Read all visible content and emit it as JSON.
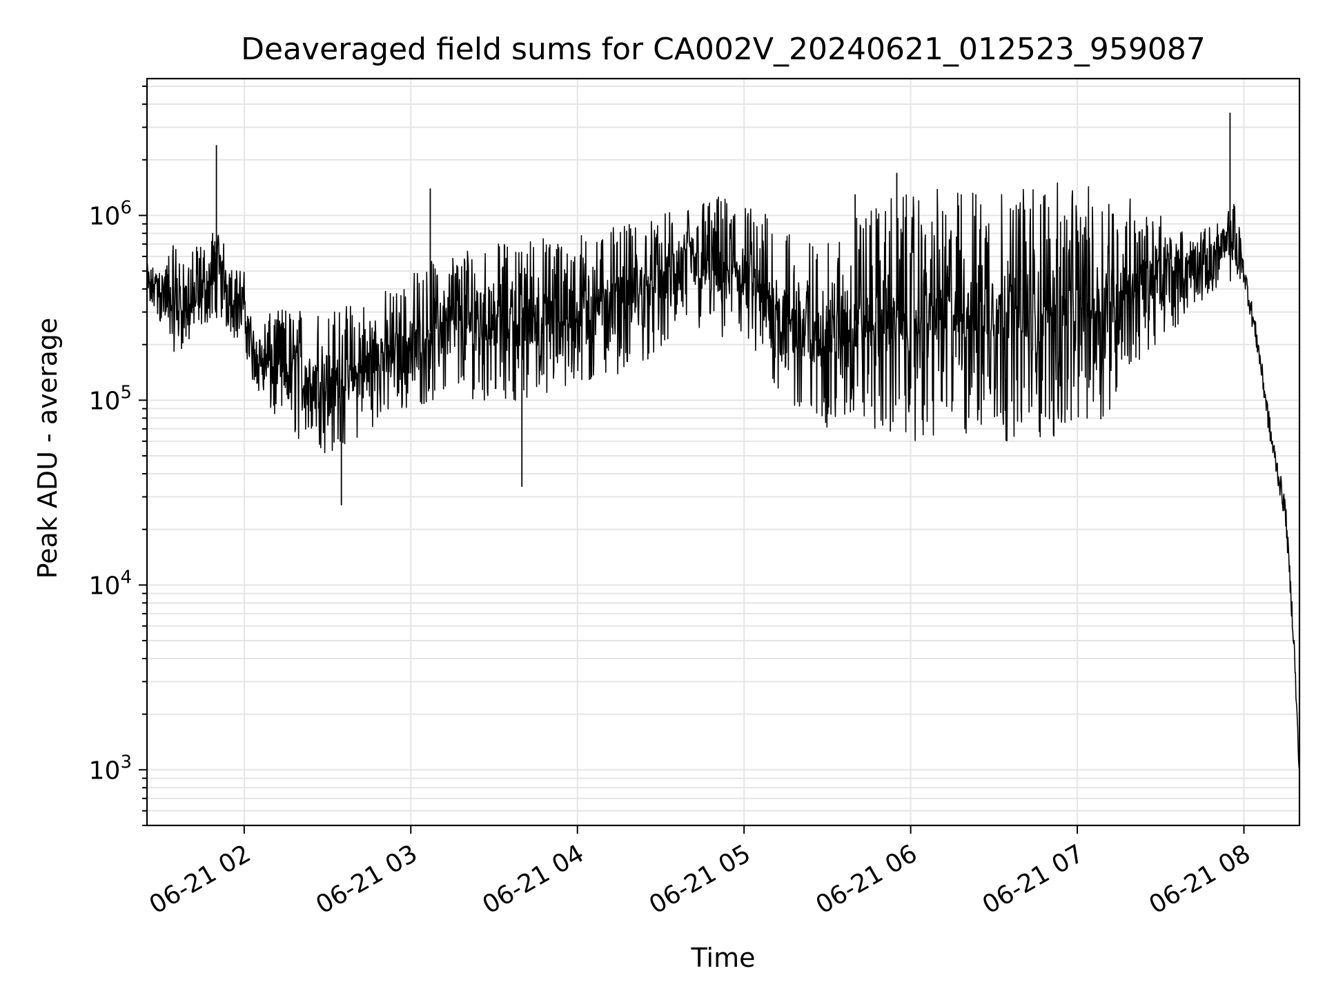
{
  "chart_data": {
    "type": "line",
    "title": "Deaveraged field sums for CA002V_20240621_012523_959087",
    "xlabel": "Time",
    "ylabel": "Peak ADU - average",
    "y_scale": "log",
    "ylim": [
      500,
      5500000
    ],
    "xlim": [
      "2024-06-21 01:25",
      "2024-06-21 08:20"
    ],
    "grid": true,
    "legend": "none",
    "line_color": "#000000",
    "grid_color": "#e5e5e5",
    "x_ticks": [
      {
        "x": "2024-06-21 02:00",
        "label": "06-21 02"
      },
      {
        "x": "2024-06-21 03:00",
        "label": "06-21 03"
      },
      {
        "x": "2024-06-21 04:00",
        "label": "06-21 04"
      },
      {
        "x": "2024-06-21 05:00",
        "label": "06-21 05"
      },
      {
        "x": "2024-06-21 06:00",
        "label": "06-21 06"
      },
      {
        "x": "2024-06-21 07:00",
        "label": "06-21 07"
      },
      {
        "x": "2024-06-21 08:00",
        "label": "06-21 08"
      }
    ],
    "y_ticks": [
      {
        "value": 1000,
        "base": "10",
        "exp": "3"
      },
      {
        "value": 10000,
        "base": "10",
        "exp": "4"
      },
      {
        "value": 100000,
        "base": "10",
        "exp": "5"
      },
      {
        "value": 1000000,
        "base": "10",
        "exp": "6"
      }
    ],
    "series": [
      {
        "x": [
          "2024-06-21 01:25",
          "2024-06-21 01:30",
          "2024-06-21 01:35",
          "2024-06-21 01:40",
          "2024-06-21 01:45",
          "2024-06-21 01:50",
          "2024-06-21 01:53",
          "2024-06-21 01:55",
          "2024-06-21 02:00",
          "2024-06-21 02:03",
          "2024-06-21 02:10",
          "2024-06-21 02:20",
          "2024-06-21 02:30",
          "2024-06-21 02:40",
          "2024-06-21 02:50",
          "2024-06-21 03:00",
          "2024-06-21 03:10",
          "2024-06-21 03:20",
          "2024-06-21 03:30",
          "2024-06-21 03:40",
          "2024-06-21 03:50",
          "2024-06-21 04:00",
          "2024-06-21 04:10",
          "2024-06-21 04:20",
          "2024-06-21 04:30",
          "2024-06-21 04:40",
          "2024-06-21 04:50",
          "2024-06-21 05:00",
          "2024-06-21 05:10",
          "2024-06-21 05:20",
          "2024-06-21 05:30",
          "2024-06-21 05:40",
          "2024-06-21 05:50",
          "2024-06-21 06:00",
          "2024-06-21 06:10",
          "2024-06-21 06:20",
          "2024-06-21 06:30",
          "2024-06-21 06:40",
          "2024-06-21 06:50",
          "2024-06-21 07:00",
          "2024-06-21 07:10",
          "2024-06-21 07:20",
          "2024-06-21 07:30",
          "2024-06-21 07:40",
          "2024-06-21 07:50",
          "2024-06-21 07:57",
          "2024-06-21 08:00",
          "2024-06-21 08:05",
          "2024-06-21 08:10",
          "2024-06-21 08:15",
          "2024-06-21 08:18",
          "2024-06-21 08:20"
        ],
        "low": [
          350000,
          250000,
          180000,
          200000,
          250000,
          280000,
          250000,
          220000,
          200000,
          120000,
          80000,
          60000,
          50000,
          60000,
          80000,
          90000,
          100000,
          100000,
          100000,
          100000,
          100000,
          110000,
          130000,
          150000,
          180000,
          250000,
          200000,
          180000,
          120000,
          80000,
          70000,
          70000,
          65000,
          60000,
          60000,
          60000,
          60000,
          60000,
          60000,
          65000,
          80000,
          150000,
          200000,
          300000,
          400000,
          450000,
          400000,
          150000,
          50000,
          20000,
          3000,
          800
        ],
        "high": [
          500000,
          600000,
          700000,
          650000,
          700000,
          900000,
          800000,
          600000,
          500000,
          250000,
          300000,
          350000,
          300000,
          350000,
          400000,
          500000,
          600000,
          700000,
          700000,
          750000,
          800000,
          800000,
          850000,
          900000,
          1000000,
          1200000,
          1300000,
          1200000,
          1000000,
          800000,
          700000,
          1000000,
          1300000,
          1300000,
          1400000,
          1400000,
          1500000,
          1500000,
          1500000,
          1500000,
          1400000,
          1300000,
          1000000,
          800000,
          900000,
          1300000,
          650000,
          300000,
          80000,
          30000,
          8000,
          2000
        ],
        "mid": [
          420000,
          380000,
          330000,
          320000,
          380000,
          450000,
          420000,
          380000,
          320000,
          180000,
          160000,
          140000,
          120000,
          140000,
          170000,
          200000,
          250000,
          270000,
          280000,
          280000,
          300000,
          310000,
          340000,
          380000,
          430000,
          550000,
          520000,
          470000,
          340000,
          250000,
          220000,
          270000,
          280000,
          280000,
          300000,
          300000,
          300000,
          300000,
          300000,
          320000,
          340000,
          450000,
          450000,
          500000,
          600000,
          750000,
          500000,
          200000,
          60000,
          25000,
          5000,
          900
        ]
      }
    ],
    "spikes": [
      {
        "x": "2024-06-21 01:50",
        "value": 2400000
      },
      {
        "x": "2024-06-21 02:35",
        "value": 27000
      },
      {
        "x": "2024-06-21 03:07",
        "value": 1400000
      },
      {
        "x": "2024-06-21 03:40",
        "value": 34000
      },
      {
        "x": "2024-06-21 05:40",
        "value": 1300000
      },
      {
        "x": "2024-06-21 05:55",
        "value": 1700000
      },
      {
        "x": "2024-06-21 07:55",
        "value": 3600000
      }
    ]
  }
}
